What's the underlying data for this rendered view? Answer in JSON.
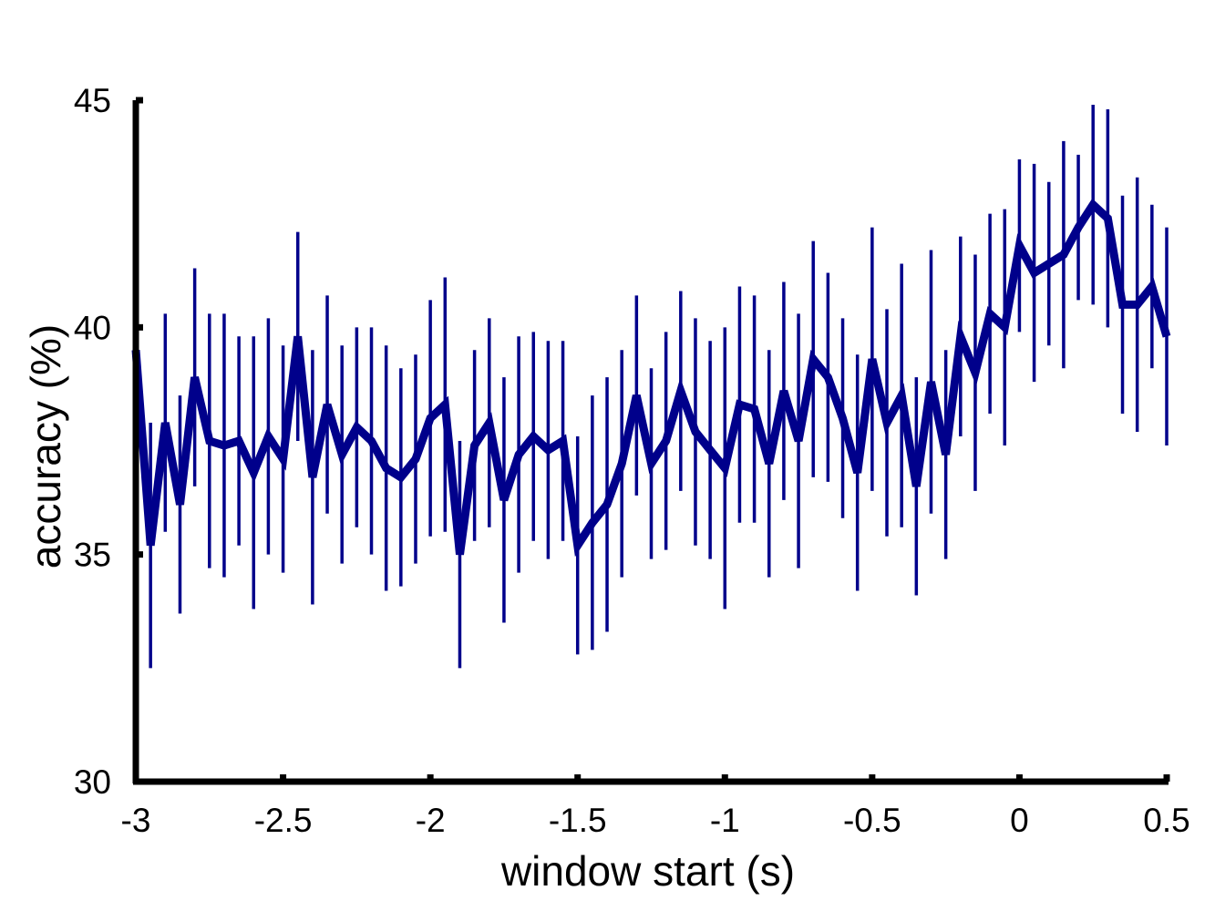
{
  "chart_data": {
    "type": "line",
    "xlabel": "window start (s)",
    "ylabel": "accuracy (%)",
    "xlim": [
      -3,
      0.5
    ],
    "ylim": [
      30,
      45
    ],
    "xticks": [
      "-3",
      "-2.5",
      "-2",
      "-1.5",
      "-1",
      "-0.5",
      "0",
      "0.5"
    ],
    "yticks": [
      "30",
      "35",
      "40",
      "45"
    ],
    "grid": false,
    "line_color": "#00008b",
    "series": [
      {
        "x": [
          -3.0,
          -2.95,
          -2.9,
          -2.85,
          -2.8,
          -2.75,
          -2.7,
          -2.65,
          -2.6,
          -2.55,
          -2.5,
          -2.45,
          -2.4,
          -2.35,
          -2.3,
          -2.25,
          -2.2,
          -2.15,
          -2.1,
          -2.05,
          -2.0,
          -1.95,
          -1.9,
          -1.85,
          -1.8,
          -1.75,
          -1.7,
          -1.65,
          -1.6,
          -1.55,
          -1.5,
          -1.45,
          -1.4,
          -1.35,
          -1.3,
          -1.25,
          -1.2,
          -1.15,
          -1.1,
          -1.05,
          -1.0,
          -0.95,
          -0.9,
          -0.85,
          -0.8,
          -0.75,
          -0.7,
          -0.65,
          -0.6,
          -0.55,
          -0.5,
          -0.45,
          -0.4,
          -0.35,
          -0.3,
          -0.25,
          -0.2,
          -0.15,
          -0.1,
          -0.05,
          0.0,
          0.05,
          0.1,
          0.15,
          0.2,
          0.25,
          0.3,
          0.35,
          0.4,
          0.45,
          0.5
        ],
        "y": [
          39.5,
          35.2,
          37.9,
          36.1,
          38.9,
          37.5,
          37.4,
          37.5,
          36.8,
          37.6,
          37.1,
          39.8,
          36.7,
          38.3,
          37.2,
          37.8,
          37.5,
          36.9,
          36.7,
          37.1,
          38.0,
          38.3,
          35.0,
          37.4,
          37.9,
          36.2,
          37.2,
          37.6,
          37.3,
          37.5,
          35.2,
          35.7,
          36.1,
          37.0,
          38.5,
          37.0,
          37.5,
          38.6,
          37.7,
          37.3,
          36.9,
          38.3,
          38.2,
          37.0,
          38.6,
          37.5,
          39.3,
          38.9,
          38.0,
          36.8,
          39.3,
          37.9,
          38.5,
          36.5,
          38.8,
          37.2,
          39.8,
          39.0,
          40.3,
          40.0,
          41.8,
          41.2,
          41.4,
          41.6,
          42.2,
          42.7,
          42.4,
          40.5,
          40.5,
          40.9,
          39.8
        ],
        "error": [
          2.0,
          2.7,
          2.4,
          2.4,
          2.4,
          2.8,
          2.9,
          2.3,
          3.0,
          2.6,
          2.5,
          2.3,
          2.8,
          2.4,
          2.4,
          2.2,
          2.5,
          2.7,
          2.4,
          2.3,
          2.6,
          2.8,
          2.5,
          2.1,
          2.3,
          2.7,
          2.6,
          2.3,
          2.4,
          2.2,
          2.4,
          2.8,
          2.8,
          2.5,
          2.2,
          2.1,
          2.4,
          2.2,
          2.5,
          2.4,
          3.1,
          2.6,
          2.5,
          2.5,
          2.4,
          2.8,
          2.6,
          2.3,
          2.2,
          2.6,
          2.9,
          2.5,
          2.9,
          2.4,
          2.9,
          2.3,
          2.2,
          2.6,
          2.2,
          2.6,
          1.9,
          2.4,
          1.8,
          2.5,
          1.6,
          2.2,
          2.4,
          2.4,
          2.8,
          1.8,
          2.4
        ]
      }
    ]
  }
}
